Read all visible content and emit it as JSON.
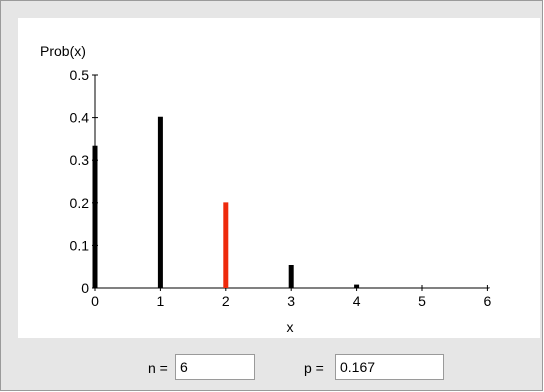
{
  "chart_data": {
    "type": "bar",
    "title": "",
    "ylabel": "Prob(x)",
    "xlabel": "x",
    "ylim": [
      0,
      0.5
    ],
    "yticks": [
      "0",
      "0.1",
      "0.2",
      "0.3",
      "0.4",
      "0.5"
    ],
    "yticks_values": [
      0,
      0.1,
      0.2,
      0.3,
      0.4,
      0.5
    ],
    "categories": [
      "0",
      "1",
      "2",
      "3",
      "4",
      "5",
      "6"
    ],
    "values": [
      0.334,
      0.402,
      0.201,
      0.054,
      0.008,
      0.001,
      2e-05
    ],
    "highlight_index": 2,
    "colors": {
      "bar": "#000000",
      "highlight": "#ee2a0c",
      "axis": "#000000"
    }
  },
  "controls": {
    "n_label": "n =",
    "n_value": "6",
    "p_label": "p =",
    "p_value": "0.167"
  }
}
